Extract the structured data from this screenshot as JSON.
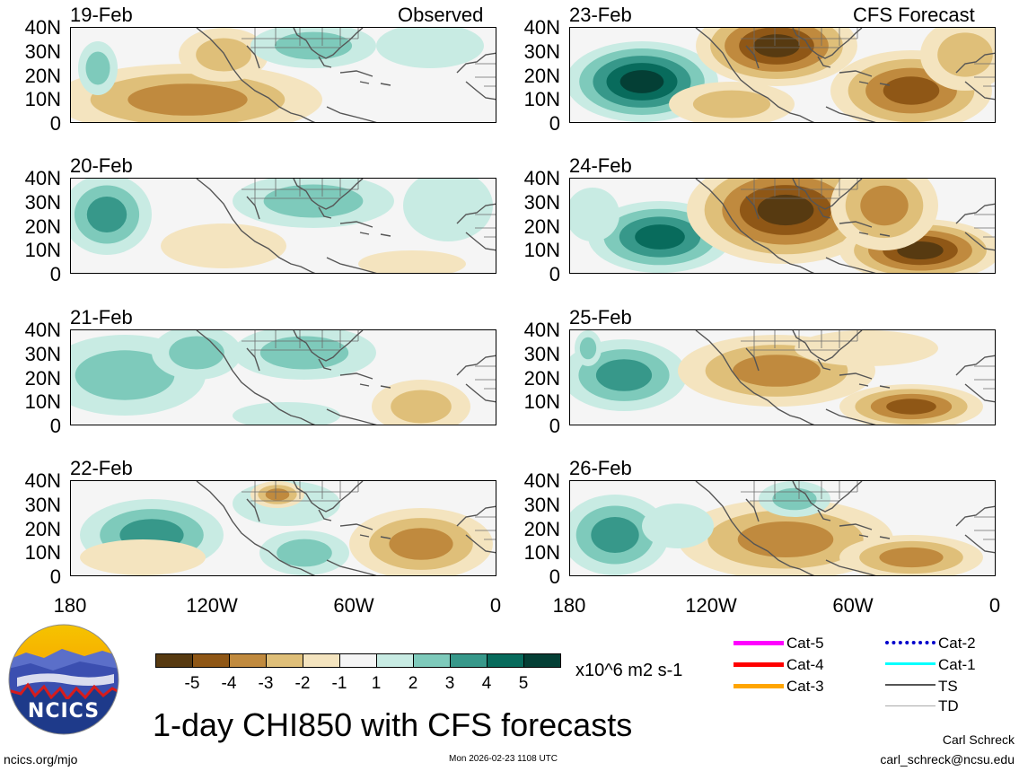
{
  "panels_left_header": "Observed",
  "panels_right_header": "CFS Forecast",
  "left_dates": [
    "19-Feb",
    "20-Feb",
    "21-Feb",
    "22-Feb"
  ],
  "right_dates": [
    "23-Feb",
    "24-Feb",
    "25-Feb",
    "26-Feb"
  ],
  "lat_labels": [
    "40N",
    "30N",
    "20N",
    "10N",
    "0"
  ],
  "lon_labels": [
    "180",
    "120W",
    "60W",
    "0"
  ],
  "colorbar": {
    "ticks": [
      "-5",
      "-4",
      "-3",
      "-2",
      "-1",
      "1",
      "2",
      "3",
      "4",
      "5"
    ],
    "units": "x10^6 m2 s-1",
    "colors": [
      "#573a11",
      "#8f5716",
      "#c08a3e",
      "#dfbf79",
      "#f4e4bf",
      "#f5f5f5",
      "#c8ebe3",
      "#7ecabb",
      "#37988a",
      "#086b5c",
      "#043f35"
    ]
  },
  "title": "1-day CHI850 with CFS forecasts",
  "logo_text": "NCICS",
  "footer": {
    "url": "ncics.org/mjo",
    "timestamp": "Mon 2026-02-23 1108 UTC",
    "author": "Carl Schreck",
    "email": "carl_schreck@ncsu.edu"
  },
  "storm_legend": [
    {
      "label": "Cat-5",
      "color": "#ff00ff"
    },
    {
      "label": "Cat-4",
      "color": "#ff0000"
    },
    {
      "label": "Cat-3",
      "color": "#ffa500"
    },
    {
      "label": "Cat-2",
      "color": "#0000cc"
    },
    {
      "label": "Cat-1",
      "color": "#00ffff"
    },
    {
      "label": "TS",
      "color": "#555555"
    },
    {
      "label": "TD",
      "color": "#aaaaaa"
    }
  ]
}
